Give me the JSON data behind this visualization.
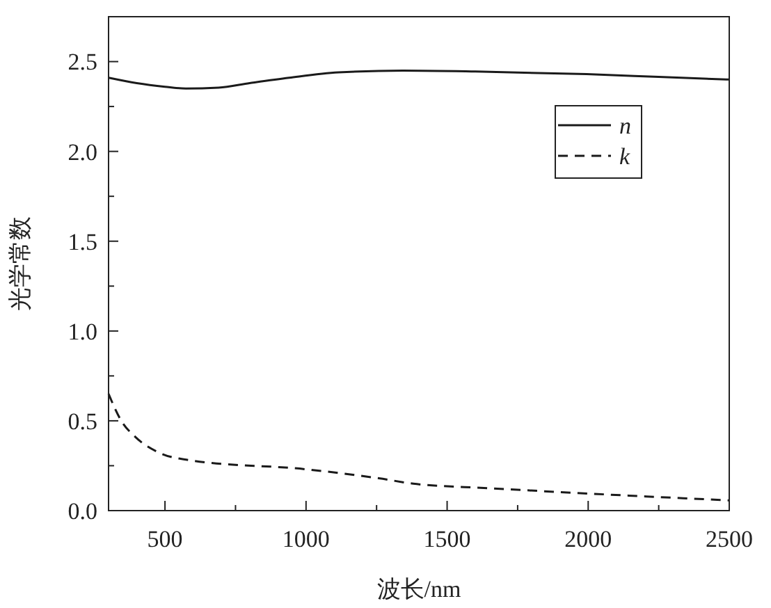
{
  "chart_data": {
    "type": "line",
    "xlabel": "波长/nm",
    "ylabel": "光学常数",
    "xlim": [
      300,
      2500
    ],
    "xticks": [
      500,
      {
        "value": 750,
        "label": null
      },
      1000,
      {
        "value": 1250,
        "label": null
      },
      1500,
      {
        "value": 1750,
        "label": null
      },
      2000,
      {
        "value": 2250,
        "label": null
      },
      2500
    ],
    "ylim": [
      0,
      2.75
    ],
    "yticks": [
      {
        "value": 0,
        "label": "0.0"
      },
      {
        "value": 0.25,
        "label": null
      },
      0.5,
      {
        "value": 0.75,
        "label": null
      },
      {
        "value": 1,
        "label": "1.0"
      },
      {
        "value": 1.25,
        "label": null
      },
      1.5,
      {
        "value": 1.75,
        "label": null
      },
      {
        "value": 2,
        "label": "2.0"
      },
      {
        "value": 2.25,
        "label": null
      },
      2.5
    ],
    "legend": "top right",
    "grid": false,
    "series": [
      {
        "name": "n",
        "color": "#1a1a1a",
        "line_style": "solid",
        "x": [
          300,
          400,
          500,
          574,
          690,
          800,
          940,
          1115,
          1344,
          1600,
          1994,
          2250,
          2500
        ],
        "values": [
          2.41,
          2.38,
          2.36,
          2.35,
          2.355,
          2.38,
          2.41,
          2.44,
          2.45,
          2.445,
          2.43,
          2.415,
          2.4
        ]
      },
      {
        "name": "k",
        "color": "#1a1a1a",
        "line_style": "dashed",
        "x": [
          300,
          345,
          395,
          483,
          590,
          1000,
          1258,
          1380,
          1646,
          2000,
          2500
        ],
        "values": [
          0.65,
          0.5,
          0.41,
          0.32,
          0.28,
          0.23,
          0.18,
          0.15,
          0.125,
          0.095,
          0.057
        ]
      }
    ]
  }
}
